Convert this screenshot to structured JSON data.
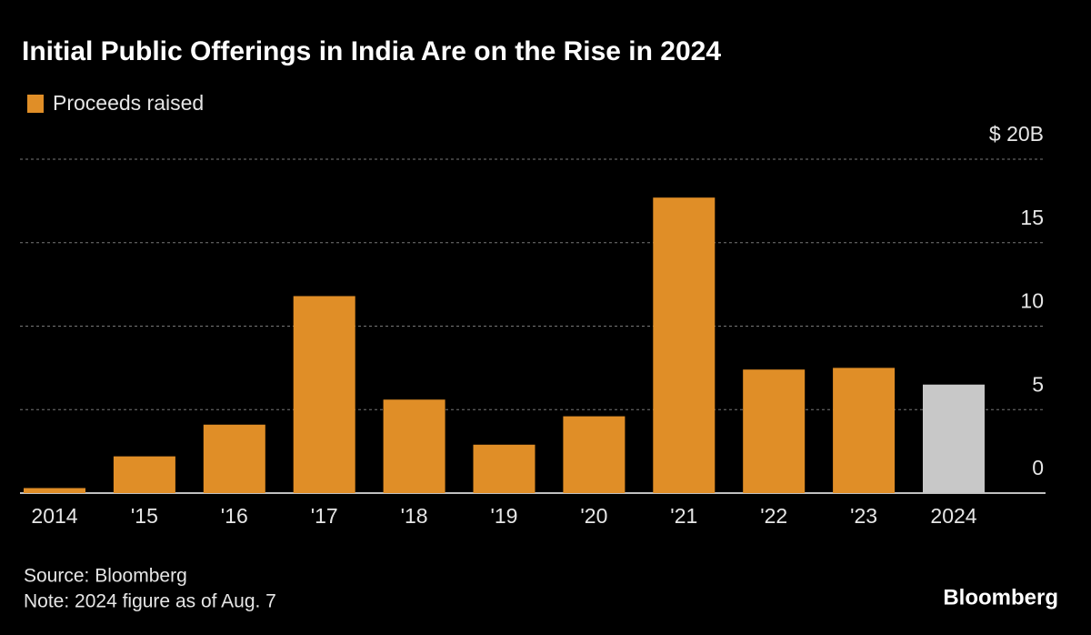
{
  "chart_data": {
    "type": "bar",
    "title": "Initial Public Offerings in India Are on the Rise in 2024",
    "categories": [
      "2014",
      "'15",
      "'16",
      "'17",
      "'18",
      "'19",
      "'20",
      "'21",
      "'22",
      "'23",
      "2024"
    ],
    "series": [
      {
        "name": "Proceeds raised",
        "color": "#e08e27",
        "values": [
          0.3,
          2.2,
          4.1,
          11.8,
          5.6,
          2.9,
          4.6,
          17.7,
          7.4,
          7.5,
          6.5
        ],
        "colors": [
          "#e08e27",
          "#e08e27",
          "#e08e27",
          "#e08e27",
          "#e08e27",
          "#e08e27",
          "#e08e27",
          "#e08e27",
          "#e08e27",
          "#e08e27",
          "#c8c8c8"
        ]
      }
    ],
    "ylim": [
      0,
      20
    ],
    "yticks": [
      0,
      5,
      10,
      15,
      {
        "value": 20,
        "label": "$ 20B"
      }
    ],
    "grid": true,
    "source": "Source: Bloomberg",
    "note": "Note: 2024 figure as of Aug. 7",
    "brand": "Bloomberg"
  }
}
